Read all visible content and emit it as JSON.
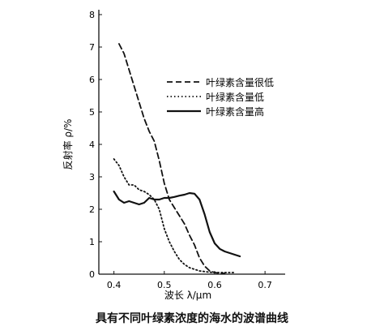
{
  "caption": "具有不同叶绿素浓度的海水的波谱曲线",
  "chart_data": {
    "type": "line",
    "title": "",
    "xlabel": "波长 λ/μm",
    "ylabel": "反射率 ρ/%",
    "xlim": [
      0.37,
      0.74
    ],
    "ylim": [
      0,
      8
    ],
    "xticks": [
      0.4,
      0.5,
      0.6,
      0.7
    ],
    "yticks": [
      0,
      1,
      2,
      3,
      4,
      5,
      6,
      7,
      8
    ],
    "grid": false,
    "legend_position": "top-right",
    "series": [
      {
        "name": "叶绿素含量很低",
        "style": "dashed",
        "x": [
          0.41,
          0.42,
          0.43,
          0.44,
          0.45,
          0.46,
          0.47,
          0.48,
          0.49,
          0.5,
          0.51,
          0.52,
          0.53,
          0.54,
          0.55,
          0.56,
          0.57,
          0.58,
          0.59,
          0.6,
          0.61,
          0.62
        ],
        "y": [
          7.1,
          6.8,
          6.3,
          5.8,
          5.3,
          4.8,
          4.4,
          4.1,
          3.5,
          2.8,
          2.3,
          2.05,
          1.8,
          1.55,
          1.2,
          0.9,
          0.5,
          0.25,
          0.1,
          0.05,
          0.03,
          0.02
        ]
      },
      {
        "name": "叶绿素含量低",
        "style": "dotted",
        "x": [
          0.4,
          0.41,
          0.42,
          0.43,
          0.44,
          0.45,
          0.46,
          0.47,
          0.48,
          0.49,
          0.5,
          0.51,
          0.52,
          0.53,
          0.54,
          0.55,
          0.56,
          0.57,
          0.58,
          0.59,
          0.6,
          0.61,
          0.62,
          0.63,
          0.64
        ],
        "y": [
          3.55,
          3.35,
          3.0,
          2.75,
          2.75,
          2.6,
          2.55,
          2.45,
          2.3,
          2.0,
          1.4,
          1.0,
          0.7,
          0.45,
          0.3,
          0.2,
          0.15,
          0.1,
          0.08,
          0.06,
          0.05,
          0.05,
          0.05,
          0.05,
          0.05
        ]
      },
      {
        "name": "叶绿素含量高",
        "style": "solid",
        "x": [
          0.4,
          0.41,
          0.42,
          0.43,
          0.44,
          0.45,
          0.46,
          0.47,
          0.48,
          0.49,
          0.5,
          0.51,
          0.52,
          0.53,
          0.54,
          0.55,
          0.56,
          0.57,
          0.58,
          0.59,
          0.6,
          0.61,
          0.62,
          0.63,
          0.64,
          0.65
        ],
        "y": [
          2.55,
          2.3,
          2.2,
          2.25,
          2.2,
          2.15,
          2.2,
          2.35,
          2.3,
          2.3,
          2.35,
          2.35,
          2.38,
          2.42,
          2.45,
          2.5,
          2.48,
          2.3,
          1.85,
          1.3,
          0.95,
          0.78,
          0.7,
          0.65,
          0.6,
          0.55
        ]
      }
    ]
  }
}
